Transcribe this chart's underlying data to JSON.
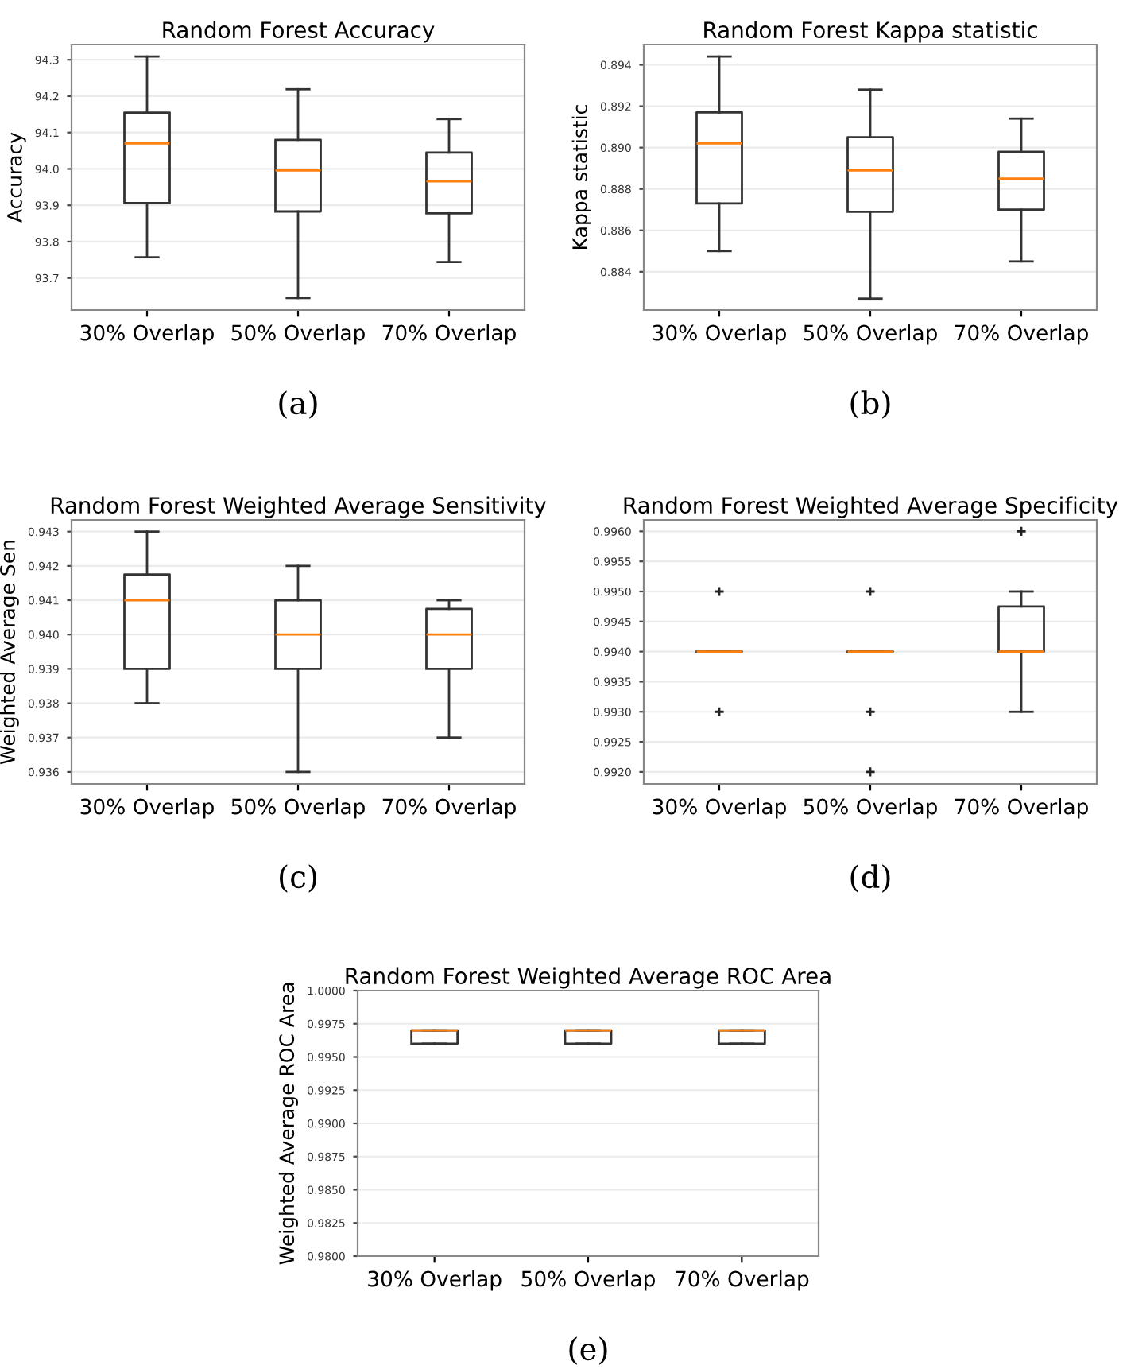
{
  "chart_data": [
    {
      "type": "box",
      "title": "Random Forest Accuracy",
      "ylabel": "Accuracy",
      "categories": [
        "30% Overlap",
        "50% Overlap",
        "70% Overlap"
      ],
      "boxes": [
        {
          "low": 93.757,
          "q1": 93.906,
          "median": 94.07,
          "q3": 94.155,
          "high": 94.309
        },
        {
          "low": 93.645,
          "q1": 93.883,
          "median": 93.996,
          "q3": 94.08,
          "high": 94.219
        },
        {
          "low": 93.744,
          "q1": 93.878,
          "median": 93.966,
          "q3": 94.045,
          "high": 94.137
        }
      ],
      "ylim": [
        93.612,
        94.342
      ],
      "yticks": [
        93.7,
        93.8,
        93.9,
        {
          "value": 94.0,
          "label": "94.0"
        },
        94.1,
        94.2,
        94.3
      ],
      "grid": "y",
      "annotations": [
        "(a)"
      ]
    },
    {
      "type": "box",
      "title": "Random Forest Kappa statistic",
      "ylabel": "Kappa statistic",
      "categories": [
        "30% Overlap",
        "50% Overlap",
        "70% Overlap"
      ],
      "boxes": [
        {
          "low": 0.885,
          "q1": 0.8873,
          "median": 0.8902,
          "q3": 0.8917,
          "high": 0.8944
        },
        {
          "low": 0.8827,
          "q1": 0.8869,
          "median": 0.8889,
          "q3": 0.8905,
          "high": 0.8928
        },
        {
          "low": 0.8845,
          "q1": 0.887,
          "median": 0.8885,
          "q3": 0.8898,
          "high": 0.8914
        }
      ],
      "ylim": [
        0.88215,
        0.89498
      ],
      "yticks": [
        0.884,
        0.886,
        0.888,
        {
          "value": 0.89,
          "label": "0.890"
        },
        0.892,
        0.894
      ],
      "grid": "y",
      "annotations": [
        "(b)"
      ]
    },
    {
      "type": "box",
      "title": "Random Forest Weighted Average Sensitivity",
      "ylabel": "Weighted Average Sen",
      "categories": [
        "30% Overlap",
        "50% Overlap",
        "70% Overlap"
      ],
      "boxes": [
        {
          "low": 0.938,
          "q1": 0.939,
          "median": 0.941,
          "q3": 0.94175,
          "high": 0.943
        },
        {
          "low": 0.936,
          "q1": 0.939,
          "median": 0.94,
          "q3": 0.941,
          "high": 0.942
        },
        {
          "low": 0.937,
          "q1": 0.939,
          "median": 0.94,
          "q3": 0.94075,
          "high": 0.941
        }
      ],
      "ylim": [
        0.93565,
        0.94334
      ],
      "yticks": [
        0.936,
        0.937,
        0.938,
        0.939,
        {
          "value": 0.94,
          "label": "0.940"
        },
        0.941,
        0.942,
        0.943
      ],
      "grid": "y",
      "annotations": [
        "(c)"
      ]
    },
    {
      "type": "box",
      "title": "Random Forest Weighted Average Specificity",
      "categories": [
        "30% Overlap",
        "50% Overlap",
        "70% Overlap"
      ],
      "boxes": [
        {
          "low": 0.994,
          "q1": 0.994,
          "median": 0.994,
          "q3": 0.994,
          "high": 0.994,
          "outliers": [
            0.995,
            0.993
          ]
        },
        {
          "low": 0.994,
          "q1": 0.994,
          "median": 0.994,
          "q3": 0.994,
          "high": 0.994,
          "outliers": [
            0.995,
            0.993,
            0.992
          ]
        },
        {
          "low": 0.993,
          "q1": 0.994,
          "median": 0.994,
          "q3": 0.99475,
          "high": 0.995,
          "outliers": [
            0.996
          ]
        }
      ],
      "ylim": [
        0.9918,
        0.99619
      ],
      "yticks": [
        {
          "value": 0.992,
          "label": "0.9920"
        },
        {
          "value": 0.9925,
          "label": "0.9925"
        },
        {
          "value": 0.993,
          "label": "0.9930"
        },
        {
          "value": 0.9935,
          "label": "0.9935"
        },
        {
          "value": 0.994,
          "label": "0.9940"
        },
        {
          "value": 0.9945,
          "label": "0.9945"
        },
        {
          "value": 0.995,
          "label": "0.9950"
        },
        {
          "value": 0.9955,
          "label": "0.9955"
        },
        {
          "value": 0.996,
          "label": "0.9960"
        }
      ],
      "grid": "y",
      "annotations": [
        "(d)"
      ]
    },
    {
      "type": "box",
      "title": "Random Forest Weighted Average ROC Area",
      "ylabel": "Weighted Average ROC Area",
      "categories": [
        "30% Overlap",
        "50% Overlap",
        "70% Overlap"
      ],
      "boxes": [
        {
          "low": 0.996,
          "q1": 0.996,
          "median": 0.997,
          "q3": 0.997,
          "high": 0.997
        },
        {
          "low": 0.996,
          "q1": 0.996,
          "median": 0.997,
          "q3": 0.997,
          "high": 0.997
        },
        {
          "low": 0.996,
          "q1": 0.996,
          "median": 0.997,
          "q3": 0.997,
          "high": 0.997
        }
      ],
      "ylim": [
        0.98,
        1.0
      ],
      "yticks": [
        {
          "value": 0.98,
          "label": "0.9800"
        },
        {
          "value": 0.9825,
          "label": "0.9825"
        },
        {
          "value": 0.985,
          "label": "0.9850"
        },
        {
          "value": 0.9875,
          "label": "0.9875"
        },
        {
          "value": 0.99,
          "label": "0.9900"
        },
        {
          "value": 0.9925,
          "label": "0.9925"
        },
        {
          "value": 0.995,
          "label": "0.9950"
        },
        {
          "value": 0.9975,
          "label": "0.9975"
        },
        {
          "value": 1.0,
          "label": "1.0000"
        }
      ],
      "grid": "y",
      "annotations": [
        "(e)"
      ]
    }
  ]
}
